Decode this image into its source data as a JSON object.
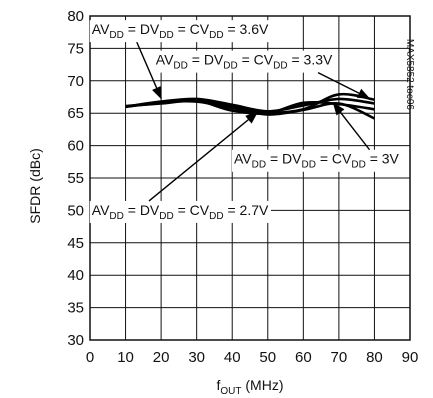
{
  "chart_data": {
    "type": "line",
    "title": "",
    "xlabel": {
      "main": "f",
      "sub": "OUT",
      "unit": " (MHz)"
    },
    "ylabel": "SFDR (dBc)",
    "xlim": [
      0,
      90
    ],
    "ylim": [
      30,
      80
    ],
    "xticks": [
      0,
      10,
      20,
      30,
      40,
      50,
      60,
      70,
      80,
      90
    ],
    "yticks": [
      30,
      35,
      40,
      45,
      50,
      55,
      60,
      65,
      70,
      75,
      80
    ],
    "grid": true,
    "legend": "none",
    "figure_code": "MAX5852 toc06",
    "series": [
      {
        "name": "AVDD = DVDD = CVDD = 3.6V",
        "x": [
          10,
          20,
          30,
          40,
          50,
          60,
          70,
          80
        ],
        "y": [
          66.0,
          66.8,
          67.2,
          66.3,
          65.3,
          66.2,
          67.2,
          66.5
        ]
      },
      {
        "name": "AVDD = DVDD = CVDD = 3.3V",
        "x": [
          10,
          20,
          30,
          40,
          50,
          60,
          70,
          80
        ],
        "y": [
          66.0,
          66.6,
          67.0,
          66.0,
          65.1,
          65.6,
          67.9,
          67.1
        ]
      },
      {
        "name": "AVDD = DVDD = CVDD = 3V",
        "x": [
          10,
          20,
          30,
          40,
          50,
          60,
          70,
          80
        ],
        "y": [
          66.0,
          66.7,
          66.8,
          65.8,
          64.8,
          65.5,
          66.5,
          64.2
        ]
      },
      {
        "name": "AVDD = DVDD = CVDD = 2.7V",
        "x": [
          10,
          20,
          30,
          40,
          50,
          60,
          70,
          80
        ],
        "y": [
          66.1,
          66.5,
          66.9,
          65.4,
          65.0,
          66.6,
          66.4,
          65.6
        ]
      }
    ],
    "annotations": [
      {
        "label": "AV",
        "s1": "DD",
        "m1": " = DV",
        "s2": "DD",
        "m2": " = CV",
        "s3": "DD",
        "tail": " = 3.6V",
        "text_at": [
          0.5,
          77.2
        ],
        "arrow_to": [
          20,
          67.3
        ]
      },
      {
        "label": "AV",
        "s1": "DD",
        "m1": " = DV",
        "s2": "DD",
        "m2": " = CV",
        "s3": "DD",
        "tail": " = 3.3V",
        "text_at": [
          18.5,
          72.5
        ],
        "arrow_to": [
          78.5,
          67.3
        ]
      },
      {
        "label": "AV",
        "s1": "DD",
        "m1": " = DV",
        "s2": "DD",
        "m2": " = CV",
        "s3": "DD",
        "tail": " = 3V",
        "text_at": [
          40.5,
          57.2
        ],
        "arrow_to": [
          68.5,
          66.5
        ]
      },
      {
        "label": "AV",
        "s1": "DD",
        "m1": " = DV",
        "s2": "DD",
        "m2": " = CV",
        "s3": "DD",
        "tail": " = 2.7V",
        "text_at": [
          0.5,
          49.3
        ],
        "arrow_to": [
          47,
          65.1
        ]
      }
    ]
  }
}
